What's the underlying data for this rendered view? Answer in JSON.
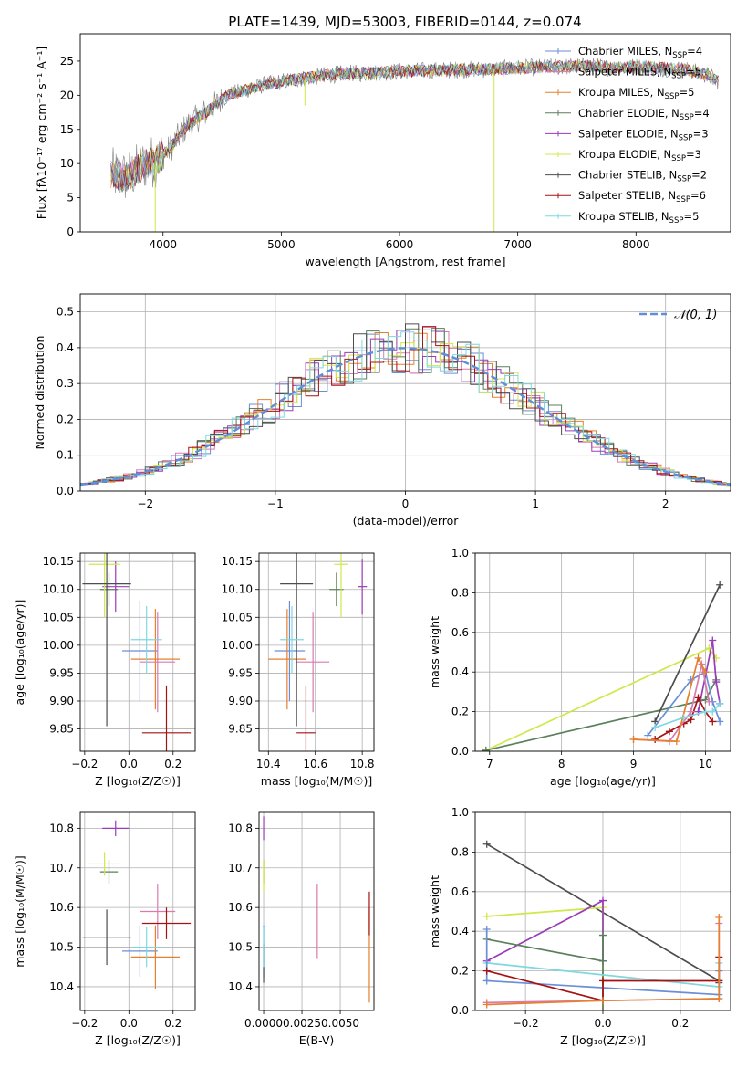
{
  "figure": {
    "title": "PLATE=1439, MJD=53003, FIBERID=0144, z=0.074"
  },
  "colors": {
    "Chabrier MILES": "#6a8fd6",
    "Salpeter MILES": "#d97ab0",
    "Kroupa MILES": "#e6802e",
    "Chabrier ELODIE": "#5b7f5c",
    "Salpeter ELODIE": "#9a3bb8",
    "Kroupa ELODIE": "#cfe84a",
    "Chabrier STELIB": "#4d4d4d",
    "Salpeter STELIB": "#a51212",
    "Kroupa STELIB": "#7dd8e0",
    "gaussian": "#5f8fd8"
  },
  "chart_data": [
    {
      "id": "spectrum",
      "type": "line",
      "xlabel": "wavelength [Angstrom, rest frame]",
      "ylabel": "Flux [fλ10⁻¹⁷ erg cm⁻² s⁻¹ A⁻¹]",
      "xlim": [
        3300,
        8800
      ],
      "ylim": [
        0,
        29
      ],
      "xticks": [
        4000,
        5000,
        6000,
        7000,
        8000
      ],
      "yticks": [
        0,
        5,
        10,
        15,
        20,
        25
      ],
      "grid": false,
      "legend_position": "upper-right",
      "legend": [
        {
          "label": "Chabrier MILES, N",
          "sub": "SSP",
          "suffix": "=4",
          "color": "#6a8fd6"
        },
        {
          "label": "Salpeter MILES, N",
          "sub": "SSP",
          "suffix": "=5",
          "color": "#d97ab0"
        },
        {
          "label": "Kroupa MILES, N",
          "sub": "SSP",
          "suffix": "=5",
          "color": "#e6802e"
        },
        {
          "label": "Chabrier ELODIE, N",
          "sub": "SSP",
          "suffix": "=4",
          "color": "#5b7f5c"
        },
        {
          "label": "Salpeter ELODIE, N",
          "sub": "SSP",
          "suffix": "=3",
          "color": "#9a3bb8"
        },
        {
          "label": "Kroupa ELODIE, N",
          "sub": "SSP",
          "suffix": "=3",
          "color": "#cfe84a"
        },
        {
          "label": "Chabrier STELIB, N",
          "sub": "SSP",
          "suffix": "=2",
          "color": "#4d4d4d"
        },
        {
          "label": "Salpeter STELIB, N",
          "sub": "SSP",
          "suffix": "=6",
          "color": "#a51212"
        },
        {
          "label": "Kroupa STELIB, N",
          "sub": "SSP",
          "suffix": "=5",
          "color": "#7dd8e0"
        }
      ],
      "continuum": {
        "x": [
          3550,
          3700,
          3850,
          3950,
          4050,
          4200,
          4400,
          4550,
          4700,
          4850,
          5000,
          5200,
          5400,
          5600,
          5800,
          6000,
          6200,
          6400,
          6600,
          6800,
          7000,
          7200,
          7400,
          7600,
          7800,
          8000,
          8200,
          8400,
          8600,
          8700
        ],
        "y": [
          8.5,
          8.0,
          10.0,
          10.5,
          12.0,
          15.5,
          18.0,
          20.0,
          20.8,
          21.5,
          22.0,
          22.5,
          23.0,
          23.2,
          23.3,
          23.5,
          23.6,
          23.7,
          23.8,
          23.8,
          24.0,
          24.1,
          24.2,
          24.3,
          24.0,
          24.2,
          24.0,
          23.8,
          23.0,
          22.0
        ]
      },
      "dips": [
        {
          "x": 3934,
          "y": 0,
          "color": "#cfe84a"
        },
        {
          "x": 6800,
          "y": 0,
          "color": "#cfe84a"
        },
        {
          "x": 7400,
          "y": 0,
          "color": "#e6802e"
        },
        {
          "x": 5200,
          "y": 18.5,
          "color": "#cfe84a"
        }
      ]
    },
    {
      "id": "residuals",
      "type": "histogram",
      "xlabel": "(data-model)/error",
      "ylabel": "Normed distribution",
      "xlim": [
        -2.5,
        2.5
      ],
      "ylim": [
        0,
        0.55
      ],
      "xticks": [
        -2,
        -1,
        0,
        1,
        2
      ],
      "yticks": [
        0.0,
        0.1,
        0.2,
        0.3,
        0.4,
        0.5
      ],
      "grid": true,
      "bin_width": 0.1,
      "legend": [
        {
          "label": "𝒩(0, 1)",
          "color": "#5f8fd8",
          "style": "dashed"
        }
      ],
      "legend_position": "upper-right"
    },
    {
      "id": "age_vs_Z",
      "type": "errorbar",
      "xlabel": "Z [log₁₀(Z/Z☉)]",
      "ylabel": "age  [log₁₀(age/yr)]",
      "xlim": [
        -0.22,
        0.3
      ],
      "ylim": [
        9.81,
        10.165
      ],
      "xticks": [
        -0.2,
        0.0,
        0.2
      ],
      "yticks": [
        9.85,
        9.9,
        9.95,
        10.0,
        10.05,
        10.1,
        10.15
      ],
      "grid": true,
      "points": [
        {
          "x": 0.05,
          "y": 9.99,
          "xerr": 0.08,
          "yerr": 0.09,
          "color": "#6a8fd6"
        },
        {
          "x": 0.13,
          "y": 9.97,
          "xerr": 0.08,
          "yerr": 0.09,
          "color": "#d97ab0"
        },
        {
          "x": 0.12,
          "y": 9.975,
          "xerr": 0.11,
          "yerr": 0.09,
          "color": "#e6802e"
        },
        {
          "x": -0.09,
          "y": 10.1,
          "xerr": 0.04,
          "yerr": 0.03,
          "color": "#5b7f5c"
        },
        {
          "x": -0.06,
          "y": 10.105,
          "xerr": 0.06,
          "yerr": 0.045,
          "color": "#9a3bb8"
        },
        {
          "x": -0.11,
          "y": 10.145,
          "xerr": 0.07,
          "yerr": 0.095,
          "color": "#cfe84a"
        },
        {
          "x": -0.1,
          "y": 10.11,
          "xerr": 0.11,
          "yerr": 0.255,
          "color": "#4d4d4d"
        },
        {
          "x": 0.17,
          "y": 9.843,
          "xerr": 0.11,
          "yerr": 0.085,
          "color": "#a51212"
        },
        {
          "x": 0.08,
          "y": 10.01,
          "xerr": 0.07,
          "yerr": 0.06,
          "color": "#7dd8e0"
        }
      ]
    },
    {
      "id": "age_vs_mass",
      "type": "errorbar",
      "xlabel": "mass [log₁₀(M/M☉)]",
      "ylabel": "",
      "xlim": [
        10.36,
        10.85
      ],
      "ylim": [
        9.81,
        10.165
      ],
      "xticks": [
        10.4,
        10.6,
        10.8
      ],
      "yticks": [
        9.85,
        9.9,
        9.95,
        10.0,
        10.05,
        10.1,
        10.15
      ],
      "grid": true,
      "points": [
        {
          "x": 10.49,
          "y": 9.99,
          "xerr": 0.065,
          "yerr": 0.09,
          "color": "#6a8fd6"
        },
        {
          "x": 10.59,
          "y": 9.97,
          "xerr": 0.07,
          "yerr": 0.09,
          "color": "#d97ab0"
        },
        {
          "x": 10.48,
          "y": 9.975,
          "xerr": 0.08,
          "yerr": 0.09,
          "color": "#e6802e"
        },
        {
          "x": 10.69,
          "y": 10.1,
          "xerr": 0.03,
          "yerr": 0.03,
          "color": "#5b7f5c"
        },
        {
          "x": 10.8,
          "y": 10.105,
          "xerr": 0.02,
          "yerr": 0.05,
          "color": "#9a3bb8"
        },
        {
          "x": 10.71,
          "y": 10.145,
          "xerr": 0.03,
          "yerr": 0.095,
          "color": "#cfe84a"
        },
        {
          "x": 10.52,
          "y": 10.11,
          "xerr": 0.07,
          "yerr": 0.255,
          "color": "#4d4d4d"
        },
        {
          "x": 10.56,
          "y": 9.843,
          "xerr": 0.04,
          "yerr": 0.085,
          "color": "#a51212"
        },
        {
          "x": 10.5,
          "y": 10.01,
          "xerr": 0.05,
          "yerr": 0.06,
          "color": "#7dd8e0"
        }
      ]
    },
    {
      "id": "weight_vs_age",
      "type": "line",
      "xlabel": "age  [log₁₀(age/yr)]",
      "ylabel": "mass weight",
      "xlim": [
        6.8,
        10.35
      ],
      "ylim": [
        0.0,
        1.0
      ],
      "xticks": [
        7,
        8,
        9,
        10
      ],
      "yticks": [
        0.0,
        0.2,
        0.4,
        0.6,
        0.8,
        1.0
      ],
      "grid": true,
      "series": [
        {
          "color": "#cfe84a",
          "x": [
            6.95,
            10.05,
            10.15
          ],
          "y": [
            0.005,
            0.52,
            0.47
          ]
        },
        {
          "color": "#5b7f5c",
          "x": [
            6.95,
            10.0,
            10.15
          ],
          "y": [
            0.005,
            0.26,
            0.36
          ]
        },
        {
          "color": "#4d4d4d",
          "x": [
            9.3,
            10.2
          ],
          "y": [
            0.15,
            0.84
          ]
        },
        {
          "color": "#6a8fd6",
          "x": [
            9.2,
            9.8,
            10.0,
            10.1,
            10.2
          ],
          "y": [
            0.08,
            0.36,
            0.4,
            0.25,
            0.15
          ]
        },
        {
          "color": "#9a3bb8",
          "x": [
            9.9,
            10.1,
            10.15,
            10.2
          ],
          "y": [
            0.2,
            0.56,
            0.35,
            0.24
          ]
        },
        {
          "color": "#a51212",
          "x": [
            9.3,
            9.5,
            9.7,
            9.8,
            9.9,
            10.0,
            10.1
          ],
          "y": [
            0.06,
            0.1,
            0.14,
            0.16,
            0.27,
            0.2,
            0.15
          ]
        },
        {
          "color": "#d97ab0",
          "x": [
            9.0,
            9.5,
            9.8,
            9.95,
            10.05
          ],
          "y": [
            0.06,
            0.05,
            0.2,
            0.44,
            0.25
          ]
        },
        {
          "color": "#e6802e",
          "x": [
            9.0,
            9.6,
            9.9,
            10.0
          ],
          "y": [
            0.06,
            0.05,
            0.47,
            0.4
          ]
        },
        {
          "color": "#7dd8e0",
          "x": [
            9.3,
            9.7,
            10.0,
            10.1,
            10.2
          ],
          "y": [
            0.12,
            0.17,
            0.2,
            0.2,
            0.24
          ]
        }
      ]
    },
    {
      "id": "mass_vs_Z",
      "type": "errorbar",
      "xlabel": "Z [log₁₀(Z/Z☉)]",
      "ylabel": "mass [log₁₀(M/M☉)]",
      "xlim": [
        -0.22,
        0.3
      ],
      "ylim": [
        10.34,
        10.84
      ],
      "xticks": [
        -0.2,
        0.0,
        0.2
      ],
      "yticks": [
        10.4,
        10.5,
        10.6,
        10.7,
        10.8
      ],
      "grid": true,
      "points": [
        {
          "x": 0.05,
          "y": 10.49,
          "xerr": 0.08,
          "yerr": 0.065,
          "color": "#6a8fd6"
        },
        {
          "x": 0.13,
          "y": 10.59,
          "xerr": 0.08,
          "yerr": 0.07,
          "color": "#d97ab0"
        },
        {
          "x": 0.12,
          "y": 10.475,
          "xerr": 0.11,
          "yerr": 0.08,
          "color": "#e6802e"
        },
        {
          "x": -0.09,
          "y": 10.69,
          "xerr": 0.04,
          "yerr": 0.03,
          "color": "#5b7f5c"
        },
        {
          "x": -0.06,
          "y": 10.8,
          "xerr": 0.06,
          "yerr": 0.02,
          "color": "#9a3bb8"
        },
        {
          "x": -0.11,
          "y": 10.71,
          "xerr": 0.07,
          "yerr": 0.03,
          "color": "#cfe84a"
        },
        {
          "x": -0.1,
          "y": 10.525,
          "xerr": 0.11,
          "yerr": 0.07,
          "color": "#4d4d4d"
        },
        {
          "x": 0.17,
          "y": 10.56,
          "xerr": 0.11,
          "yerr": 0.04,
          "color": "#a51212"
        },
        {
          "x": 0.08,
          "y": 10.5,
          "xerr": 0.07,
          "yerr": 0.05,
          "color": "#7dd8e0"
        }
      ]
    },
    {
      "id": "mass_vs_EBV",
      "type": "errorbar",
      "xlabel": "E(B-V)",
      "ylabel": "",
      "xlim": [
        -0.0003,
        0.0072
      ],
      "ylim": [
        10.34,
        10.84
      ],
      "xticks": [
        0.0,
        0.0025,
        0.005
      ],
      "xticklabels": [
        "0.0000",
        "0.0025",
        "0.0050"
      ],
      "yticks": [
        10.4,
        10.5,
        10.6,
        10.7,
        10.8
      ],
      "grid": true,
      "points": [
        {
          "x": 0.0,
          "y": 10.49,
          "xerr": 0,
          "yerr": 0.065,
          "color": "#6a8fd6"
        },
        {
          "x": 0.0035,
          "y": 10.565,
          "xerr": 0,
          "yerr": 0.095,
          "color": "#d97ab0"
        },
        {
          "x": 0.0069,
          "y": 10.48,
          "xerr": 0,
          "yerr": 0.12,
          "color": "#e6802e"
        },
        {
          "x": 0.0,
          "y": 10.69,
          "xerr": 0,
          "yerr": 0.03,
          "color": "#5b7f5c"
        },
        {
          "x": 0.0,
          "y": 10.8,
          "xerr": 0,
          "yerr": 0.03,
          "color": "#9a3bb8"
        },
        {
          "x": 0.0,
          "y": 10.68,
          "xerr": 0,
          "yerr": 0.04,
          "color": "#cfe84a"
        },
        {
          "x": 0.0,
          "y": 10.46,
          "xerr": 0,
          "yerr": 0.05,
          "color": "#4d4d4d"
        },
        {
          "x": 0.0069,
          "y": 10.585,
          "xerr": 0,
          "yerr": 0.055,
          "color": "#a51212"
        },
        {
          "x": 0.0,
          "y": 10.5,
          "xerr": 0,
          "yerr": 0.05,
          "color": "#7dd8e0"
        }
      ]
    },
    {
      "id": "weight_vs_Z",
      "type": "line",
      "xlabel": "Z [log₁₀(Z/Z☉)]",
      "ylabel": "mass weight",
      "xlim": [
        -0.33,
        0.33
      ],
      "ylim": [
        0.0,
        1.0
      ],
      "xticks": [
        -0.2,
        0.0,
        0.2
      ],
      "yticks": [
        0.0,
        0.2,
        0.4,
        0.6,
        0.8,
        1.0
      ],
      "grid": true,
      "series": [
        {
          "color": "#4d4d4d",
          "x": [
            -0.3,
            0.3,
            0.3
          ],
          "y": [
            0.84,
            0.15,
            0.14
          ]
        },
        {
          "color": "#cfe84a",
          "x": [
            -0.3,
            0.0,
            0.0
          ],
          "y": [
            0.475,
            0.52,
            0.0
          ]
        },
        {
          "color": "#9a3bb8",
          "x": [
            -0.3,
            0.0,
            0.0
          ],
          "y": [
            0.25,
            0.555,
            0.25
          ]
        },
        {
          "color": "#5b7f5c",
          "x": [
            -0.3,
            0.0,
            0.0,
            0.0
          ],
          "y": [
            0.36,
            0.25,
            0.38,
            0.0
          ]
        },
        {
          "color": "#7dd8e0",
          "x": [
            -0.3,
            0.3,
            0.3
          ],
          "y": [
            0.24,
            0.12,
            0.24
          ]
        },
        {
          "color": "#6a8fd6",
          "x": [
            -0.3,
            -0.3,
            0.3,
            0.3
          ],
          "y": [
            0.41,
            0.15,
            0.08,
            0.2
          ]
        },
        {
          "color": "#a51212",
          "x": [
            -0.3,
            0.0,
            0.0,
            0.3,
            0.3
          ],
          "y": [
            0.2,
            0.05,
            0.15,
            0.15,
            0.27
          ]
        },
        {
          "color": "#d97ab0",
          "x": [
            -0.3,
            0.0,
            0.3,
            0.3
          ],
          "y": [
            0.04,
            0.05,
            0.06,
            0.44
          ]
        },
        {
          "color": "#e6802e",
          "x": [
            -0.3,
            0.0,
            0.3,
            0.3
          ],
          "y": [
            0.03,
            0.05,
            0.06,
            0.47
          ]
        }
      ]
    }
  ]
}
